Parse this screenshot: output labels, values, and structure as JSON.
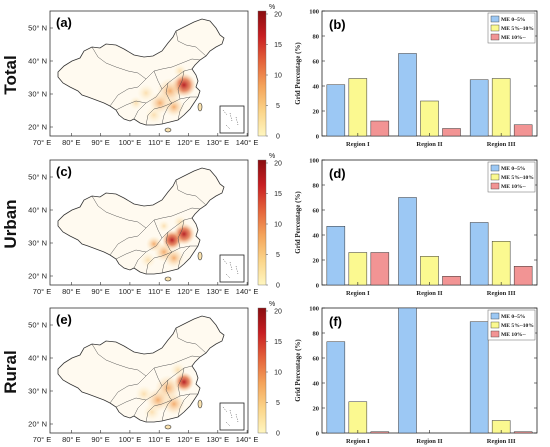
{
  "map_axis": {
    "lon_ticks": [
      "70° E",
      "80° E",
      "90° E",
      "100° E",
      "110° E",
      "120° E",
      "130° E",
      "140° E"
    ],
    "lat_ticks": [
      "50° N",
      "40° N",
      "30° N",
      "20° N"
    ]
  },
  "colorbar": {
    "unit": "%",
    "ticks": [
      "0",
      "5",
      "10",
      "15",
      "20"
    ],
    "colors": [
      "#fff6c0",
      "#fbd488",
      "#f4a35a",
      "#e4623a",
      "#c81e22",
      "#8a0d10"
    ]
  },
  "rows": [
    {
      "label": "Total",
      "map_panel": "(a)",
      "bar_panel": "(b)"
    },
    {
      "label": "Urban",
      "map_panel": "(c)",
      "bar_panel": "(d)"
    },
    {
      "label": "Rural",
      "map_panel": "(e)",
      "bar_panel": "(f)"
    }
  ],
  "bar_axis": {
    "ylabel": "Grid Percentage (%)",
    "yticks": [
      "0",
      "20",
      "40",
      "60",
      "80",
      "100"
    ],
    "ylim": [
      0,
      100
    ]
  },
  "series_colors": [
    "#9cc8f4",
    "#fbf990",
    "#f29494"
  ],
  "chart_data": [
    {
      "panel": "(b)",
      "type": "bar",
      "categories": [
        "Region I",
        "Region II",
        "Region III"
      ],
      "series": [
        {
          "name": "ME 0~5%",
          "values": [
            41,
            66,
            45
          ]
        },
        {
          "name": "ME 5%~10%",
          "values": [
            46,
            28,
            46
          ]
        },
        {
          "name": "ME 10%~",
          "values": [
            12,
            6,
            9
          ]
        }
      ],
      "ylabel": "Grid Percentage (%)",
      "ylim": [
        0,
        100
      ],
      "grid": false,
      "legend": "top-right"
    },
    {
      "panel": "(d)",
      "type": "bar",
      "categories": [
        "Region I",
        "Region II",
        "Region III"
      ],
      "series": [
        {
          "name": "ME 0~5%",
          "values": [
            47,
            70,
            50
          ]
        },
        {
          "name": "ME 5%~10%",
          "values": [
            26,
            23,
            35
          ]
        },
        {
          "name": "ME 10%~",
          "values": [
            26,
            7,
            15
          ]
        }
      ],
      "ylabel": "Grid Percentage (%)",
      "ylim": [
        0,
        100
      ],
      "grid": false,
      "legend": "top-right"
    },
    {
      "panel": "(f)",
      "type": "bar",
      "categories": [
        "Region I",
        "Region II",
        "Region III"
      ],
      "series": [
        {
          "name": "ME 0~5%",
          "values": [
            73,
            100,
            89
          ]
        },
        {
          "name": "ME 5%~10%",
          "values": [
            25,
            0,
            10
          ]
        },
        {
          "name": "ME 10%~",
          "values": [
            1,
            0,
            1
          ]
        }
      ],
      "ylabel": "Grid Percentage (%)",
      "ylim": [
        0,
        100
      ],
      "grid": false,
      "legend": "top-right"
    }
  ]
}
